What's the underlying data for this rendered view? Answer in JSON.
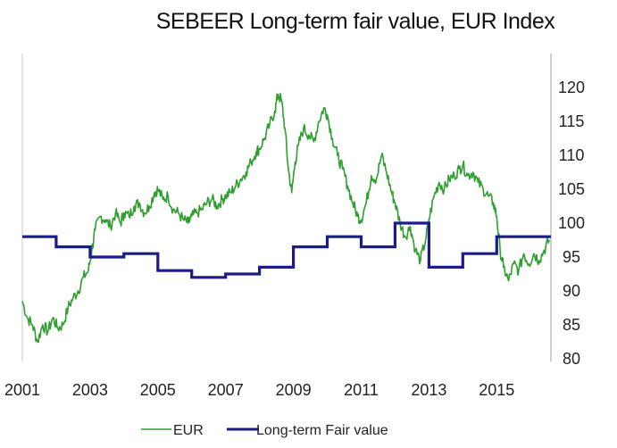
{
  "chart_data": {
    "type": "line",
    "title": "SEBEER Long-term fair value, EUR Index",
    "xlabel": "",
    "ylabel": "",
    "xlim": [
      2001,
      2016.6
    ],
    "ylim": [
      80,
      125
    ],
    "y_axis_position": "right",
    "x_ticks": [
      {
        "value": 2001,
        "label": "2001"
      },
      {
        "value": 2003,
        "label": "2003"
      },
      {
        "value": 2005,
        "label": "2005"
      },
      {
        "value": 2007,
        "label": "2007"
      },
      {
        "value": 2009,
        "label": "2009"
      },
      {
        "value": 2011,
        "label": "2011"
      },
      {
        "value": 2013,
        "label": "2013"
      },
      {
        "value": 2015,
        "label": "2015"
      }
    ],
    "y_ticks": [
      {
        "value": 80,
        "label": "80"
      },
      {
        "value": 85,
        "label": "85"
      },
      {
        "value": 90,
        "label": "90"
      },
      {
        "value": 95,
        "label": "95"
      },
      {
        "value": 100,
        "label": "100"
      },
      {
        "value": 105,
        "label": "105"
      },
      {
        "value": 110,
        "label": "110"
      },
      {
        "value": 115,
        "label": "115"
      },
      {
        "value": 120,
        "label": "120"
      }
    ],
    "legend_position": "bottom",
    "series": [
      {
        "name": "EUR",
        "color": "#2e9e2e",
        "style": "line",
        "x": [
          2001.0,
          2001.15,
          2001.3,
          2001.45,
          2001.6,
          2001.75,
          2001.9,
          2002.05,
          2002.2,
          2002.35,
          2002.5,
          2002.65,
          2002.8,
          2002.95,
          2003.05,
          2003.15,
          2003.3,
          2003.45,
          2003.6,
          2003.75,
          2003.9,
          2004.0,
          2004.15,
          2004.3,
          2004.45,
          2004.6,
          2004.75,
          2004.9,
          2005.0,
          2005.15,
          2005.3,
          2005.45,
          2005.6,
          2005.75,
          2005.9,
          2006.0,
          2006.15,
          2006.3,
          2006.45,
          2006.6,
          2006.75,
          2006.9,
          2007.0,
          2007.15,
          2007.3,
          2007.45,
          2007.6,
          2007.75,
          2007.9,
          2008.0,
          2008.15,
          2008.3,
          2008.45,
          2008.55,
          2008.65,
          2008.75,
          2008.85,
          2008.95,
          2009.05,
          2009.15,
          2009.3,
          2009.45,
          2009.6,
          2009.75,
          2009.9,
          2010.0,
          2010.15,
          2010.3,
          2010.45,
          2010.6,
          2010.75,
          2010.9,
          2011.0,
          2011.15,
          2011.3,
          2011.45,
          2011.6,
          2011.75,
          2011.9,
          2012.0,
          2012.15,
          2012.3,
          2012.45,
          2012.6,
          2012.75,
          2012.9,
          2013.0,
          2013.15,
          2013.3,
          2013.45,
          2013.6,
          2013.75,
          2013.9,
          2014.0,
          2014.15,
          2014.3,
          2014.45,
          2014.6,
          2014.75,
          2014.9,
          2015.0,
          2015.1,
          2015.2,
          2015.35,
          2015.5,
          2015.65,
          2015.8,
          2015.95,
          2016.1,
          2016.25,
          2016.4,
          2016.55
        ],
        "values": [
          88.5,
          86.0,
          85.0,
          82.5,
          85.0,
          84.0,
          86.0,
          84.5,
          85.0,
          87.5,
          89.0,
          90.0,
          92.0,
          93.0,
          96.0,
          99.0,
          101.0,
          100.5,
          99.5,
          101.5,
          100.0,
          101.5,
          101.0,
          102.5,
          103.0,
          101.5,
          102.5,
          104.5,
          105.0,
          103.5,
          104.0,
          102.0,
          101.5,
          100.5,
          100.0,
          101.0,
          101.5,
          102.0,
          103.0,
          103.5,
          102.5,
          103.5,
          104.0,
          104.5,
          105.5,
          106.5,
          107.5,
          109.0,
          110.5,
          111.0,
          112.5,
          114.5,
          116.5,
          119.0,
          118.0,
          114.0,
          108.0,
          104.5,
          109.0,
          111.5,
          114.0,
          113.0,
          112.0,
          115.0,
          117.0,
          116.0,
          112.5,
          110.0,
          108.0,
          105.5,
          103.0,
          101.0,
          100.5,
          103.0,
          107.0,
          106.5,
          110.0,
          107.5,
          104.5,
          103.0,
          100.0,
          98.0,
          99.5,
          96.0,
          94.5,
          97.5,
          100.5,
          104.0,
          106.0,
          105.0,
          106.5,
          107.0,
          108.0,
          108.5,
          107.0,
          107.5,
          106.0,
          105.0,
          104.0,
          103.0,
          101.0,
          96.0,
          93.5,
          91.5,
          94.0,
          93.0,
          95.5,
          94.0,
          95.5,
          94.5,
          96.0,
          97.5
        ]
      },
      {
        "name": "Long-term Fair value",
        "color": "#1b1b8a",
        "style": "step",
        "x": [
          2001.0,
          2002.0,
          2003.0,
          2004.0,
          2005.0,
          2006.0,
          2007.0,
          2008.0,
          2009.0,
          2010.0,
          2011.0,
          2012.0,
          2012.75,
          2013.0,
          2014.0,
          2015.0,
          2016.6
        ],
        "values": [
          98.0,
          96.5,
          95.0,
          95.5,
          93.0,
          92.0,
          92.5,
          93.5,
          96.5,
          98.0,
          96.5,
          100.0,
          100.0,
          93.5,
          95.5,
          98.0,
          98.0
        ]
      }
    ],
    "legend": [
      {
        "label": "EUR",
        "color": "#2e9e2e"
      },
      {
        "label": "Long-term Fair value",
        "color": "#1b1b8a"
      }
    ]
  }
}
